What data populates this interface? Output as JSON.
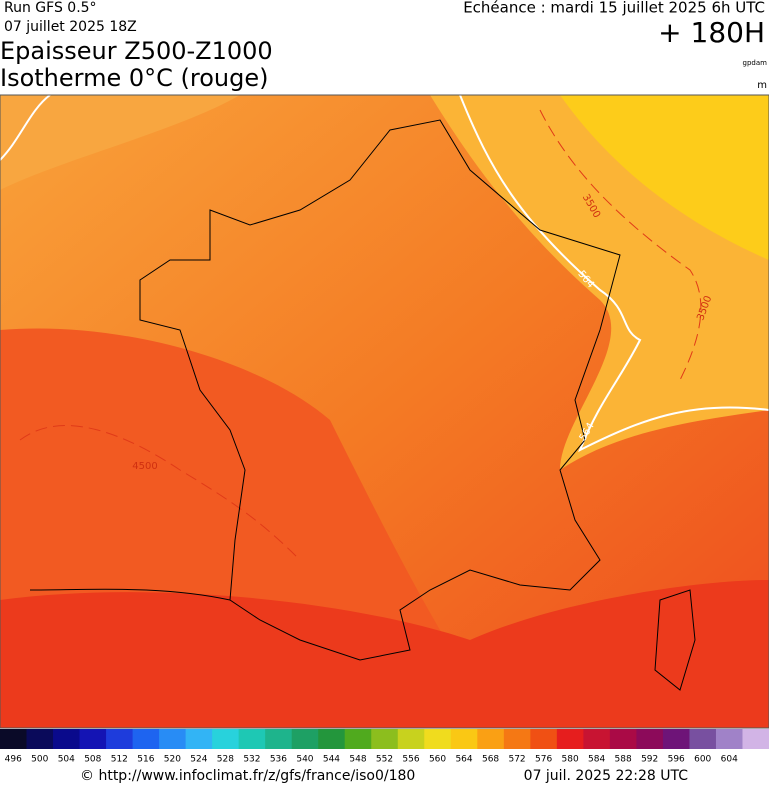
{
  "header": {
    "run": "Run GFS 0.5°",
    "run_date": "07 juillet 2025 18Z",
    "title_line1": "Epaisseur Z500-Z1000",
    "title_line2": "Isotherme 0°C (rouge)",
    "echeance": "Echéance : mardi 15 juillet 2025 6h UTC",
    "lead": "+ 180H",
    "unit_thickness": "gpdam",
    "unit_iso": "m"
  },
  "contour_labels": [
    "3500",
    "3500",
    "4500",
    "564",
    "564"
  ],
  "legend": {
    "labels": [
      496,
      500,
      504,
      508,
      512,
      516,
      520,
      524,
      528,
      532,
      536,
      540,
      544,
      548,
      552,
      556,
      560,
      564,
      568,
      572,
      576,
      580,
      584,
      588,
      592,
      596,
      600,
      604
    ],
    "colors": [
      "#0a0a28",
      "#0a0a5a",
      "#0a0a8c",
      "#1414b4",
      "#1e3cdc",
      "#1e64f0",
      "#288cf5",
      "#32b4f5",
      "#28d2dc",
      "#1ec8b4",
      "#1eb48c",
      "#1ea064",
      "#23963c",
      "#50aa1e",
      "#8cbe1e",
      "#c8d21e",
      "#f0dc1e",
      "#fac814",
      "#faa014",
      "#f57814",
      "#f05014",
      "#e61e1e",
      "#c81432",
      "#aa0a46",
      "#8c0a5a",
      "#6e1478",
      "#7850a0",
      "#a082c8",
      "#d2b4e6"
    ]
  },
  "footer": {
    "url": "© http://www.infoclimat.fr/z/gfs/france/iso0/180",
    "generated": "07 juil. 2025 22:28 UTC"
  }
}
